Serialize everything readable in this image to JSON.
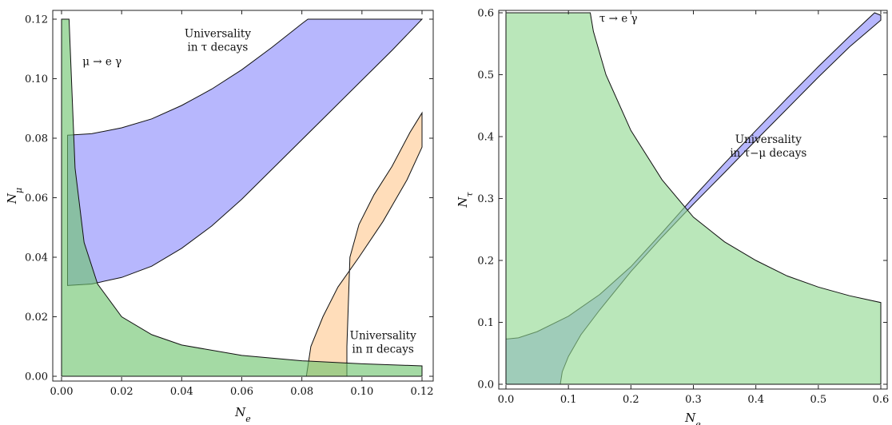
{
  "chart_data": [
    {
      "type": "area",
      "xlabel_base": "N",
      "xlabel_sub": "e",
      "ylabel_base": "N",
      "ylabel_sub": "μ",
      "xlim": [
        0,
        0.12
      ],
      "ylim": [
        0,
        0.12
      ],
      "xticks": [
        "0.00",
        "0.02",
        "0.04",
        "0.06",
        "0.08",
        "0.10",
        "0.12"
      ],
      "yticks": [
        "0.00",
        "0.02",
        "0.04",
        "0.06",
        "0.08",
        "0.10",
        "0.12"
      ],
      "xtick_values": [
        0,
        0.02,
        0.04,
        0.06,
        0.08,
        0.1,
        0.12
      ],
      "ytick_values": [
        0,
        0.02,
        0.04,
        0.06,
        0.08,
        0.1,
        0.12
      ],
      "regions": [
        {
          "label_lines": [
            "Universality",
            "in τ decays"
          ],
          "color": "#8a8afc",
          "boundary": [
            [
              0.002,
              0.081
            ],
            [
              0.01,
              0.0815
            ],
            [
              0.02,
              0.0835
            ],
            [
              0.03,
              0.0865
            ],
            [
              0.04,
              0.091
            ],
            [
              0.05,
              0.0965
            ],
            [
              0.06,
              0.103
            ],
            [
              0.07,
              0.1105
            ],
            [
              0.08,
              0.1185
            ],
            [
              0.082,
              0.12
            ],
            [
              0.12,
              0.12
            ],
            [
              0.12,
              0.12
            ],
            [
              0.11,
              0.1095
            ],
            [
              0.1,
              0.0995
            ],
            [
              0.09,
              0.0895
            ],
            [
              0.08,
              0.0795
            ],
            [
              0.07,
              0.0695
            ],
            [
              0.06,
              0.0595
            ],
            [
              0.05,
              0.0505
            ],
            [
              0.04,
              0.043
            ],
            [
              0.03,
              0.037
            ],
            [
              0.02,
              0.0332
            ],
            [
              0.01,
              0.031
            ],
            [
              0.002,
              0.0305
            ]
          ]
        },
        {
          "label_lines": [
            "Universality",
            "in π decays"
          ],
          "color": "#ffc890",
          "boundary": [
            [
              0.0815,
              0
            ],
            [
              0.083,
              0.01
            ],
            [
              0.087,
              0.02
            ],
            [
              0.092,
              0.03
            ],
            [
              0.099,
              0.04
            ],
            [
              0.107,
              0.052
            ],
            [
              0.115,
              0.066
            ],
            [
              0.12,
              0.077
            ],
            [
              0.12,
              0.078
            ],
            [
              0.12,
              0.0885
            ],
            [
              0.116,
              0.082
            ],
            [
              0.11,
              0.0705
            ],
            [
              0.104,
              0.061
            ],
            [
              0.099,
              0.051
            ],
            [
              0.096,
              0.04
            ],
            [
              0.0955,
              0.025
            ],
            [
              0.095,
              0.01
            ],
            [
              0.095,
              0
            ]
          ]
        },
        {
          "label_lines": [
            "μ → e γ"
          ],
          "color": "#6cc36c",
          "boundary": [
            [
              0,
              0.12
            ],
            [
              0.0025,
              0.12
            ],
            [
              0.0045,
              0.07
            ],
            [
              0.0075,
              0.045
            ],
            [
              0.012,
              0.031
            ],
            [
              0.02,
              0.02
            ],
            [
              0.03,
              0.014
            ],
            [
              0.04,
              0.0105
            ],
            [
              0.06,
              0.007
            ],
            [
              0.08,
              0.0052
            ],
            [
              0.1,
              0.0042
            ],
            [
              0.12,
              0.0035
            ],
            [
              0.12,
              0
            ],
            [
              0,
              0
            ]
          ]
        }
      ],
      "annotations": [
        {
          "lines": [
            "Universality",
            "in τ decays"
          ],
          "x": 0.052,
          "y": 0.114
        },
        {
          "lines": [
            "μ → e γ"
          ],
          "x": 0.0135,
          "y": 0.1045
        },
        {
          "lines": [
            "Universality",
            "in π decays"
          ],
          "x": 0.107,
          "y": 0.0125
        }
      ]
    },
    {
      "type": "area",
      "xlabel_base": "N",
      "xlabel_sub": "e",
      "ylabel_base": "N",
      "ylabel_sub": "τ",
      "xlim": [
        0,
        0.6
      ],
      "ylim": [
        0,
        0.6
      ],
      "xticks": [
        "0.0",
        "0.1",
        "0.2",
        "0.3",
        "0.4",
        "0.5",
        "0.6"
      ],
      "yticks": [
        "0.0",
        "0.1",
        "0.2",
        "0.3",
        "0.4",
        "0.5",
        "0.6"
      ],
      "xtick_values": [
        0,
        0.1,
        0.2,
        0.3,
        0.4,
        0.5,
        0.6
      ],
      "ytick_values": [
        0,
        0.1,
        0.2,
        0.3,
        0.4,
        0.5,
        0.6
      ],
      "regions": [
        {
          "label_lines": [
            "Universality",
            "in τ−μ decays"
          ],
          "color": "#8a8afc",
          "boundary": [
            [
              0,
              0.073
            ],
            [
              0.02,
              0.075
            ],
            [
              0.05,
              0.085
            ],
            [
              0.1,
              0.11
            ],
            [
              0.15,
              0.145
            ],
            [
              0.2,
              0.19
            ],
            [
              0.25,
              0.245
            ],
            [
              0.3,
              0.302
            ],
            [
              0.35,
              0.357
            ],
            [
              0.4,
              0.41
            ],
            [
              0.45,
              0.462
            ],
            [
              0.5,
              0.513
            ],
            [
              0.55,
              0.562
            ],
            [
              0.59,
              0.6
            ],
            [
              0.6,
              0.596
            ],
            [
              0.6,
              0.588
            ],
            [
              0.55,
              0.545
            ],
            [
              0.5,
              0.496
            ],
            [
              0.45,
              0.445
            ],
            [
              0.4,
              0.394
            ],
            [
              0.35,
              0.342
            ],
            [
              0.3,
              0.291
            ],
            [
              0.25,
              0.238
            ],
            [
              0.2,
              0.182
            ],
            [
              0.15,
              0.12
            ],
            [
              0.12,
              0.08
            ],
            [
              0.1,
              0.045
            ],
            [
              0.09,
              0.02
            ],
            [
              0.087,
              0
            ],
            [
              0,
              0
            ]
          ]
        },
        {
          "label_lines": [
            "τ → e γ"
          ],
          "color": "#8fd88f",
          "boundary": [
            [
              0,
              0.6
            ],
            [
              0.135,
              0.6
            ],
            [
              0.14,
              0.57
            ],
            [
              0.16,
              0.5
            ],
            [
              0.2,
              0.41
            ],
            [
              0.25,
              0.33
            ],
            [
              0.3,
              0.27
            ],
            [
              0.35,
              0.23
            ],
            [
              0.4,
              0.2
            ],
            [
              0.45,
              0.175
            ],
            [
              0.5,
              0.157
            ],
            [
              0.55,
              0.143
            ],
            [
              0.6,
              0.132
            ],
            [
              0.6,
              0
            ],
            [
              0,
              0
            ]
          ]
        }
      ],
      "annotations": [
        {
          "lines": [
            "τ → e γ"
          ],
          "x": 0.18,
          "y": 0.585
        },
        {
          "lines": [
            "Universality",
            "in τ−μ decays"
          ],
          "x": 0.42,
          "y": 0.39
        }
      ]
    }
  ]
}
